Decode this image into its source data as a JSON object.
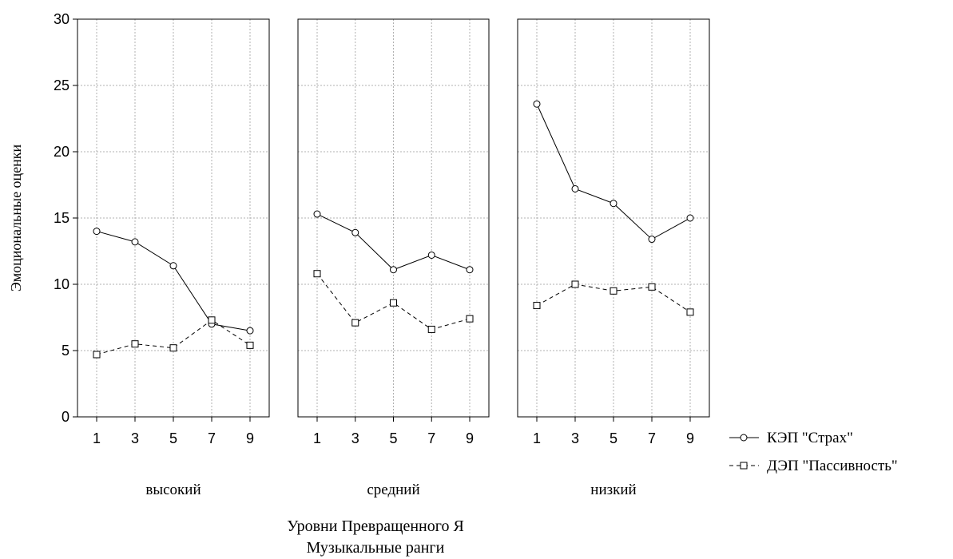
{
  "chart_data": {
    "type": "line",
    "ylabel": "Эмоциональные оценки",
    "xlabel": [
      "Уровни Превращенного Я",
      "Музыкальные ранги"
    ],
    "ylim": [
      0,
      30
    ],
    "yticks": [
      0,
      5,
      10,
      15,
      20,
      25,
      30
    ],
    "x": [
      1,
      3,
      5,
      7,
      9
    ],
    "grid": true,
    "legend_position": "bottom-right",
    "panels": [
      {
        "label": "высокий",
        "series": [
          {
            "name": "КЭП \"Страх\"",
            "values": [
              14.0,
              13.2,
              11.4,
              7.0,
              6.5
            ]
          },
          {
            "name": "ДЭП \"Пассивность\"",
            "values": [
              4.7,
              5.5,
              5.2,
              7.3,
              5.4
            ]
          }
        ]
      },
      {
        "label": "средний",
        "series": [
          {
            "name": "КЭП \"Страх\"",
            "values": [
              15.3,
              13.9,
              11.1,
              12.2,
              11.1
            ]
          },
          {
            "name": "ДЭП \"Пассивность\"",
            "values": [
              10.8,
              7.1,
              8.6,
              6.6,
              7.4
            ]
          }
        ]
      },
      {
        "label": "низкий",
        "series": [
          {
            "name": "КЭП \"Страх\"",
            "values": [
              23.6,
              17.2,
              16.1,
              13.4,
              15.0
            ]
          },
          {
            "name": "ДЭП \"Пассивность\"",
            "values": [
              8.4,
              10.0,
              9.5,
              9.8,
              7.9
            ]
          }
        ]
      }
    ],
    "legend": [
      {
        "label": "КЭП \"Страх\"",
        "marker": "circle",
        "line": "solid"
      },
      {
        "label": "ДЭП \"Пассивность\"",
        "marker": "square",
        "line": "dashed"
      }
    ],
    "colors": {
      "line": "#000000",
      "grid": "#b0b0b0",
      "background": "#ffffff"
    }
  }
}
